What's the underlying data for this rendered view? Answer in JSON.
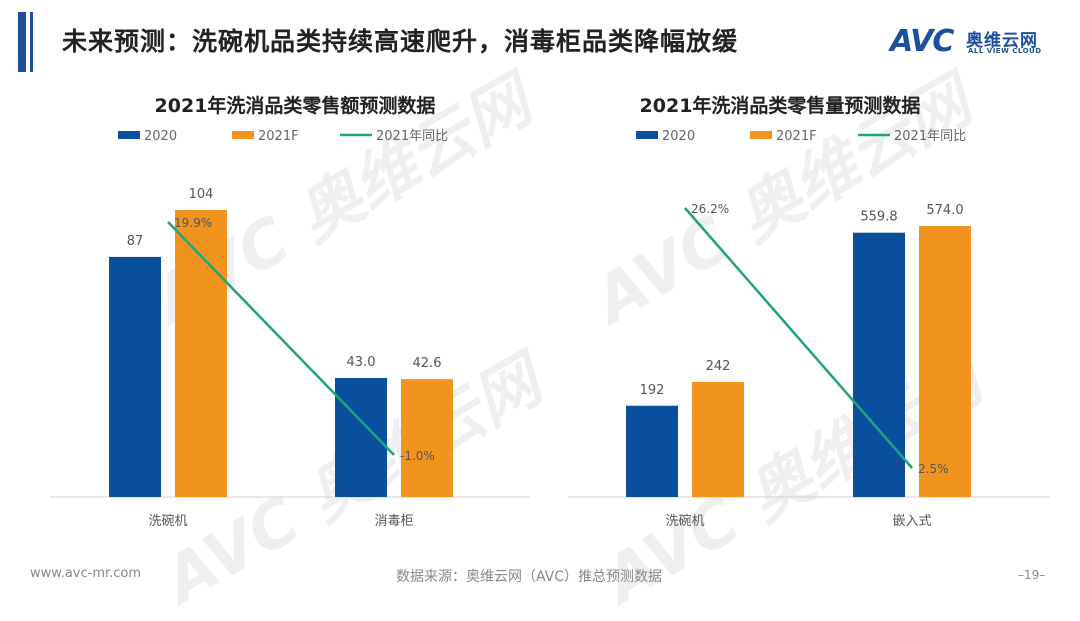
{
  "page": {
    "title": "未来预测：洗碗机品类持续高速爬升，消毒柜品类降幅放缓",
    "logo_text": "AVC",
    "logo_cn": "奥维云网",
    "logo_en": "ALL VIEW CLOUD",
    "footer_url": "www.avc-mr.com",
    "footer_source": "数据来源：奥维云网（AVC）推总预测数据",
    "page_number": "–19–"
  },
  "colors": {
    "s2020": "#0a4f9e",
    "s2021": "#f0941f",
    "yoy": "#1fa57d"
  },
  "chart_data": [
    {
      "type": "bar",
      "title": "2021年洗消品类零售额预测数据",
      "categories": [
        "洗碗机",
        "消毒柜"
      ],
      "series": [
        {
          "name": "2020",
          "values": [
            87,
            43.0
          ],
          "labels": [
            "87",
            "43.0"
          ]
        },
        {
          "name": "2021F",
          "values": [
            104,
            42.6
          ],
          "labels": [
            "104",
            "42.6"
          ]
        }
      ],
      "line_series": {
        "name": "2021年同比",
        "values": [
          19.9,
          -1.0
        ],
        "labels": [
          "19.9%",
          "-1.0%"
        ]
      },
      "legend": "top"
    },
    {
      "type": "bar",
      "title": "2021年洗消品类零售量预测数据",
      "categories": [
        "洗碗机",
        "嵌入式"
      ],
      "series": [
        {
          "name": "2020",
          "values": [
            192,
            559.8
          ],
          "labels": [
            "192",
            "559.8"
          ]
        },
        {
          "name": "2021F",
          "values": [
            242,
            574.0
          ],
          "labels": [
            "242",
            "574.0"
          ]
        }
      ],
      "line_series": {
        "name": "2021年同比",
        "values": [
          26.2,
          2.5
        ],
        "labels": [
          "26.2%",
          "2.5%"
        ]
      },
      "legend": "top"
    }
  ]
}
